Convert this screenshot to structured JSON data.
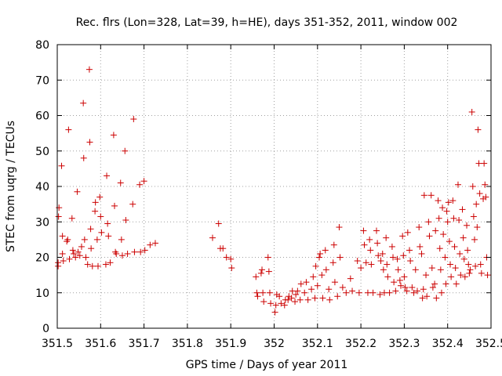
{
  "chart_data": {
    "type": "scatter",
    "title": "Rec. flrs (Lon=328, Lat=39, h=HE), days 351-352, 2011, window 002",
    "xlabel": "GPS time / Days of year 2011",
    "ylabel": "STEC from uqrg / TECUs",
    "xlim": [
      351.5,
      352.5
    ],
    "ylim": [
      0,
      80
    ],
    "x_ticks": [
      "351.5",
      "351.6",
      "351.7",
      "351.8",
      "351.9",
      "352",
      "352.1",
      "352.2",
      "352.3",
      "352.4",
      "352.5"
    ],
    "y_ticks": [
      "0",
      "10",
      "20",
      "30",
      "40",
      "50",
      "60",
      "70",
      "80"
    ],
    "grid": true,
    "grid_style": "dotted",
    "marker": "plus",
    "marker_color": "#cc0000",
    "points": [
      [
        351.502,
        17.5
      ],
      [
        351.502,
        18.5
      ],
      [
        351.503,
        31.5
      ],
      [
        351.504,
        34.0
      ],
      [
        351.51,
        45.8
      ],
      [
        351.512,
        26.0
      ],
      [
        351.512,
        21.0
      ],
      [
        351.514,
        19.0
      ],
      [
        351.522,
        24.5
      ],
      [
        351.524,
        25.0
      ],
      [
        351.526,
        56.0
      ],
      [
        351.528,
        19.5
      ],
      [
        351.534,
        31.0
      ],
      [
        351.536,
        22.0
      ],
      [
        351.538,
        21.0
      ],
      [
        351.542,
        20.0
      ],
      [
        351.546,
        38.5
      ],
      [
        351.548,
        21.5
      ],
      [
        351.552,
        20.5
      ],
      [
        351.556,
        23.0
      ],
      [
        351.56,
        63.5
      ],
      [
        351.561,
        48.0
      ],
      [
        351.563,
        25.0
      ],
      [
        351.566,
        20.0
      ],
      [
        351.57,
        18.0
      ],
      [
        351.574,
        73.0
      ],
      [
        351.575,
        52.5
      ],
      [
        351.577,
        28.0
      ],
      [
        351.578,
        22.5
      ],
      [
        351.581,
        17.5
      ],
      [
        351.587,
        33.0
      ],
      [
        351.588,
        35.5
      ],
      [
        351.592,
        25.0
      ],
      [
        351.594,
        17.5
      ],
      [
        351.598,
        37.0
      ],
      [
        351.6,
        31.5
      ],
      [
        351.602,
        27.0
      ],
      [
        351.612,
        18.0
      ],
      [
        351.614,
        43.0
      ],
      [
        351.616,
        29.5
      ],
      [
        351.618,
        26.0
      ],
      [
        351.622,
        18.5
      ],
      [
        351.63,
        54.5
      ],
      [
        351.632,
        34.5
      ],
      [
        351.634,
        21.5
      ],
      [
        351.636,
        21.0
      ],
      [
        351.646,
        41.0
      ],
      [
        351.648,
        25.0
      ],
      [
        351.65,
        20.5
      ],
      [
        351.656,
        50.0
      ],
      [
        351.658,
        30.5
      ],
      [
        351.662,
        21.0
      ],
      [
        351.674,
        35.0
      ],
      [
        351.676,
        59.0
      ],
      [
        351.678,
        21.5
      ],
      [
        351.69,
        40.5
      ],
      [
        351.692,
        21.5
      ],
      [
        351.7,
        41.5
      ],
      [
        351.702,
        22.0
      ],
      [
        351.714,
        23.5
      ],
      [
        351.726,
        24.0
      ],
      [
        351.858,
        25.5
      ],
      [
        351.872,
        29.5
      ],
      [
        351.876,
        22.5
      ],
      [
        351.882,
        22.5
      ],
      [
        351.89,
        20.0
      ],
      [
        351.9,
        19.5
      ],
      [
        351.902,
        17.0
      ],
      [
        351.958,
        14.5
      ],
      [
        351.96,
        10.0
      ],
      [
        351.962,
        9.0
      ],
      [
        351.97,
        15.5
      ],
      [
        351.972,
        16.5
      ],
      [
        351.974,
        10.0
      ],
      [
        351.976,
        7.5
      ],
      [
        351.986,
        20.0
      ],
      [
        351.988,
        16.0
      ],
      [
        351.99,
        10.0
      ],
      [
        351.992,
        7.0
      ],
      [
        352.002,
        4.5
      ],
      [
        352.004,
        6.5
      ],
      [
        352.006,
        9.5
      ],
      [
        352.012,
        9.0
      ],
      [
        352.016,
        7.0
      ],
      [
        352.024,
        6.5
      ],
      [
        352.026,
        8.0
      ],
      [
        352.032,
        8.0
      ],
      [
        352.034,
        9.0
      ],
      [
        352.04,
        8.5
      ],
      [
        352.042,
        10.5
      ],
      [
        352.048,
        7.5
      ],
      [
        352.05,
        9.5
      ],
      [
        352.054,
        10.5
      ],
      [
        352.06,
        8.0
      ],
      [
        352.062,
        12.5
      ],
      [
        352.07,
        10.0
      ],
      [
        352.074,
        13.0
      ],
      [
        352.078,
        8.0
      ],
      [
        352.086,
        11.0
      ],
      [
        352.09,
        14.5
      ],
      [
        352.094,
        8.5
      ],
      [
        352.096,
        17.5
      ],
      [
        352.1,
        12.0
      ],
      [
        352.104,
        20.0
      ],
      [
        352.106,
        21.0
      ],
      [
        352.11,
        15.0
      ],
      [
        352.112,
        8.5
      ],
      [
        352.118,
        22.0
      ],
      [
        352.12,
        16.5
      ],
      [
        352.126,
        11.0
      ],
      [
        352.128,
        8.0
      ],
      [
        352.136,
        18.5
      ],
      [
        352.138,
        23.5
      ],
      [
        352.14,
        13.0
      ],
      [
        352.146,
        9.0
      ],
      [
        352.15,
        28.5
      ],
      [
        352.152,
        20.0
      ],
      [
        352.158,
        11.5
      ],
      [
        352.166,
        10.0
      ],
      [
        352.176,
        14.0
      ],
      [
        352.18,
        10.5
      ],
      [
        352.192,
        19.0
      ],
      [
        352.196,
        10.0
      ],
      [
        352.2,
        17.0
      ],
      [
        352.206,
        27.5
      ],
      [
        352.208,
        23.5
      ],
      [
        352.212,
        18.5
      ],
      [
        352.216,
        10.0
      ],
      [
        352.22,
        25.0
      ],
      [
        352.222,
        22.0
      ],
      [
        352.224,
        18.0
      ],
      [
        352.228,
        10.0
      ],
      [
        352.236,
        27.5
      ],
      [
        352.238,
        24.0
      ],
      [
        352.24,
        20.5
      ],
      [
        352.244,
        9.5
      ],
      [
        352.246,
        19.0
      ],
      [
        352.25,
        21.0
      ],
      [
        352.252,
        16.5
      ],
      [
        352.254,
        10.0
      ],
      [
        352.258,
        25.5
      ],
      [
        352.26,
        18.0
      ],
      [
        352.262,
        14.5
      ],
      [
        352.266,
        10.0
      ],
      [
        352.272,
        23.0
      ],
      [
        352.274,
        20.0
      ],
      [
        352.276,
        13.0
      ],
      [
        352.28,
        10.5
      ],
      [
        352.284,
        19.5
      ],
      [
        352.286,
        16.5
      ],
      [
        352.29,
        13.5
      ],
      [
        352.292,
        12.0
      ],
      [
        352.296,
        26.0
      ],
      [
        352.298,
        20.5
      ],
      [
        352.3,
        14.5
      ],
      [
        352.302,
        11.5
      ],
      [
        352.306,
        10.5
      ],
      [
        352.308,
        27.0
      ],
      [
        352.312,
        22.0
      ],
      [
        352.314,
        19.0
      ],
      [
        352.318,
        11.5
      ],
      [
        352.322,
        10.0
      ],
      [
        352.326,
        16.5
      ],
      [
        352.33,
        10.5
      ],
      [
        352.334,
        28.5
      ],
      [
        352.336,
        23.0
      ],
      [
        352.34,
        21.0
      ],
      [
        352.342,
        8.5
      ],
      [
        352.344,
        11.0
      ],
      [
        352.346,
        37.5
      ],
      [
        352.35,
        15.0
      ],
      [
        352.352,
        9.0
      ],
      [
        352.356,
        30.0
      ],
      [
        352.358,
        26.0
      ],
      [
        352.362,
        37.5
      ],
      [
        352.364,
        17.0
      ],
      [
        352.366,
        11.5
      ],
      [
        352.37,
        12.5
      ],
      [
        352.372,
        27.5
      ],
      [
        352.374,
        8.5
      ],
      [
        352.378,
        36.0
      ],
      [
        352.38,
        31.0
      ],
      [
        352.382,
        22.5
      ],
      [
        352.384,
        16.5
      ],
      [
        352.386,
        10.0
      ],
      [
        352.388,
        34.0
      ],
      [
        352.39,
        26.5
      ],
      [
        352.394,
        20.0
      ],
      [
        352.396,
        12.5
      ],
      [
        352.398,
        33.0
      ],
      [
        352.4,
        30.0
      ],
      [
        352.402,
        35.5
      ],
      [
        352.404,
        24.5
      ],
      [
        352.406,
        18.0
      ],
      [
        352.408,
        14.5
      ],
      [
        352.412,
        36.0
      ],
      [
        352.414,
        31.0
      ],
      [
        352.416,
        23.0
      ],
      [
        352.418,
        17.0
      ],
      [
        352.42,
        12.5
      ],
      [
        352.424,
        40.5
      ],
      [
        352.426,
        30.5
      ],
      [
        352.428,
        21.0
      ],
      [
        352.43,
        15.0
      ],
      [
        352.434,
        33.5
      ],
      [
        352.436,
        25.5
      ],
      [
        352.438,
        19.5
      ],
      [
        352.44,
        14.5
      ],
      [
        352.444,
        29.0
      ],
      [
        352.446,
        22.0
      ],
      [
        352.448,
        18.0
      ],
      [
        352.45,
        15.5
      ],
      [
        352.452,
        16.5
      ],
      [
        352.456,
        61.0
      ],
      [
        352.458,
        40.0
      ],
      [
        352.46,
        31.5
      ],
      [
        352.462,
        25.0
      ],
      [
        352.464,
        17.5
      ],
      [
        352.466,
        35.0
      ],
      [
        352.468,
        28.5
      ],
      [
        352.47,
        56.0
      ],
      [
        352.472,
        46.5
      ],
      [
        352.474,
        38.0
      ],
      [
        352.476,
        18.0
      ],
      [
        352.478,
        15.5
      ],
      [
        352.482,
        36.5
      ],
      [
        352.484,
        46.5
      ],
      [
        352.486,
        40.5
      ],
      [
        352.488,
        37.0
      ],
      [
        352.49,
        20.0
      ],
      [
        352.492,
        15.0
      ]
    ]
  }
}
